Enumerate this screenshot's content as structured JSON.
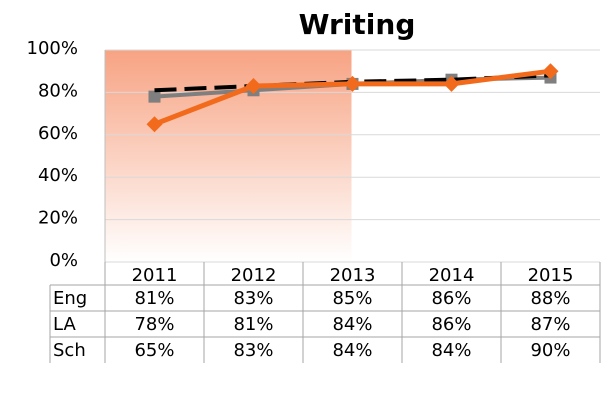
{
  "chart_data": {
    "type": "line",
    "title": "Writing",
    "categories": [
      "2011",
      "2012",
      "2013",
      "2014",
      "2015"
    ],
    "y_ticks": [
      "0%",
      "20%",
      "40%",
      "60%",
      "80%",
      "100%"
    ],
    "ylim": [
      0,
      100
    ],
    "series": [
      {
        "name": "Eng",
        "values": [
          81,
          83,
          85,
          86,
          88
        ],
        "labels": [
          "81%",
          "83%",
          "85%",
          "86%",
          "88%"
        ],
        "color": "#000000",
        "style": "dashed"
      },
      {
        "name": "LA",
        "values": [
          78,
          81,
          84,
          86,
          87
        ],
        "labels": [
          "78%",
          "81%",
          "84%",
          "86%",
          "87%"
        ],
        "color": "#7f7f7f",
        "marker": "square"
      },
      {
        "name": "Sch",
        "values": [
          65,
          83,
          84,
          84,
          90
        ],
        "labels": [
          "65%",
          "83%",
          "84%",
          "84%",
          "90%"
        ],
        "color": "#f26b1d",
        "marker": "diamond"
      }
    ],
    "highlight": {
      "from": "2011",
      "to": "2013",
      "color": "#f7a383"
    },
    "grid": true,
    "data_table": true
  }
}
